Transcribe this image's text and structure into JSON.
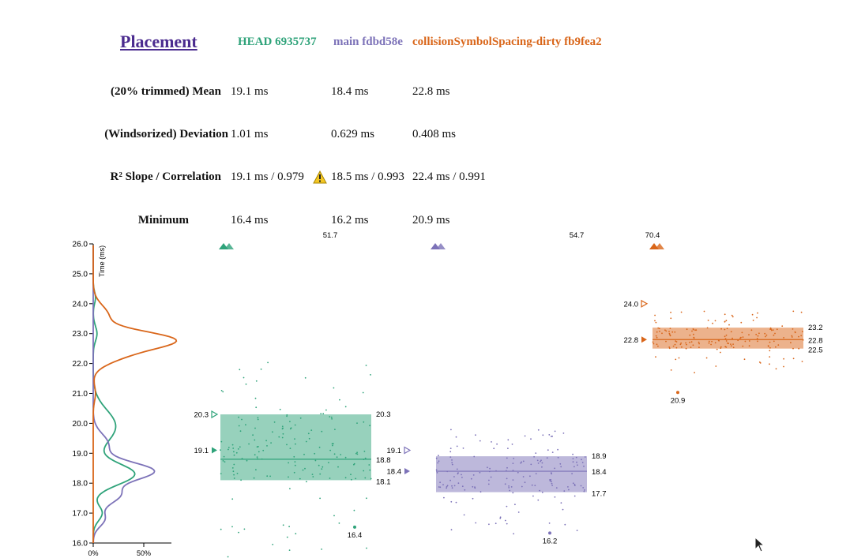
{
  "title": "Placement",
  "versions": [
    {
      "label": "HEAD 6935737",
      "color": "#2fa37a"
    },
    {
      "label": "main fdbd58e",
      "color": "#7c72b8"
    },
    {
      "label": "collisionSymbolSpacing-dirty fb9fea2",
      "color": "#d9661a"
    }
  ],
  "stats": [
    {
      "label": "(20% trimmed) Mean",
      "values": [
        "19.1 ms",
        "18.4 ms",
        "22.8 ms"
      ]
    },
    {
      "label": "(Windsorized) Deviation",
      "values": [
        "1.01 ms",
        "0.629 ms",
        "0.408 ms"
      ]
    },
    {
      "label": "R² Slope / Correlation",
      "values": [
        "19.1 ms / 0.979",
        "18.5 ms / 0.993",
        "22.4 ms / 0.991"
      ]
    },
    {
      "label": "Minimum",
      "values": [
        "16.4 ms",
        "16.2 ms",
        "20.9 ms"
      ]
    }
  ],
  "warning_icon": "warning-triangle-icon",
  "chart_data": {
    "type": "scatter",
    "ylabel": "Time (ms)",
    "ylim": [
      16.0,
      26.0
    ],
    "y_ticks": [
      "16.0",
      "17.0",
      "18.0",
      "19.0",
      "20.0",
      "21.0",
      "22.0",
      "23.0",
      "24.0",
      "25.0",
      "26.0"
    ],
    "density_x_ticks": [
      "0%",
      "50%"
    ],
    "series": [
      {
        "name": "HEAD 6935737",
        "color": "#2fa37a",
        "overflow_label": "51.7",
        "box": {
          "low": 18.1,
          "median": 18.8,
          "high": 20.3
        },
        "mean": 19.1,
        "mean_label": "19.1",
        "upper_marker": 20.3,
        "upper_label": "20.3",
        "labels": {
          "high": "20.3",
          "median": "18.8",
          "low": "18.1"
        },
        "min": 16.4,
        "min_label": "16.4"
      },
      {
        "name": "main fdbd58e",
        "color": "#7c72b8",
        "overflow_label": "54.7",
        "box": {
          "low": 17.7,
          "median": 18.4,
          "high": 18.9
        },
        "mean": 18.4,
        "mean_label": "18.4",
        "upper_marker": 19.1,
        "upper_label": "19.1",
        "labels": {
          "high": "18.9",
          "median": "18.4",
          "low": "17.7"
        },
        "min": 16.2,
        "min_label": "16.2"
      },
      {
        "name": "collisionSymbolSpacing-dirty fb9fea2",
        "color": "#d9661a",
        "overflow_label": "70.4",
        "box": {
          "low": 22.5,
          "median": 22.8,
          "high": 23.2
        },
        "mean": 22.8,
        "mean_label": "22.8",
        "upper_marker": 24.0,
        "upper_label": "24.0",
        "labels": {
          "high": "23.2",
          "median": "22.8",
          "low": "22.5"
        },
        "min": 20.9,
        "min_label": "20.9"
      }
    ]
  }
}
